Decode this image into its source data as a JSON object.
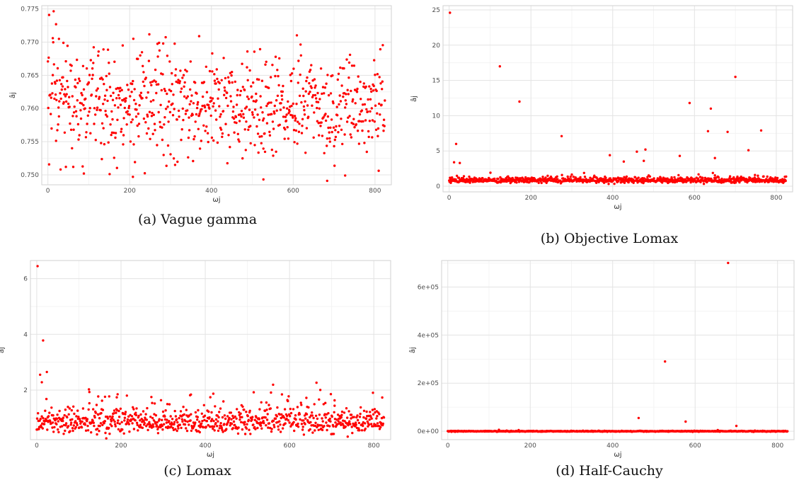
{
  "chart_data": [
    {
      "panel": "a",
      "type": "scatter",
      "caption": "(a) Vague gamma",
      "xlabel": "ωj",
      "ylabel": "âj",
      "xlim": [
        -15,
        840
      ],
      "ylim": [
        0.7485,
        0.7755
      ],
      "xticks": [
        "0",
        "200",
        "400",
        "600",
        "800"
      ],
      "yticks": [
        "0.750",
        "0.755",
        "0.760",
        "0.765",
        "0.770",
        "0.775"
      ],
      "point_color": "#ff0000",
      "grid": true,
      "n_points": 825,
      "bulk": {
        "center": 0.7605,
        "spread": 0.0042
      },
      "notable_points": [
        {
          "x": 3,
          "y": 0.7741
        },
        {
          "x": 20,
          "y": 0.7727
        },
        {
          "x": 12,
          "y": 0.7706
        },
        {
          "x": 27,
          "y": 0.7705
        },
        {
          "x": 38,
          "y": 0.7699
        },
        {
          "x": 370,
          "y": 0.7709
        },
        {
          "x": 488,
          "y": 0.7686
        },
        {
          "x": 183,
          "y": 0.7695
        },
        {
          "x": 136,
          "y": 0.7689
        },
        {
          "x": 402,
          "y": 0.7683
        },
        {
          "x": 88,
          "y": 0.7502
        },
        {
          "x": 208,
          "y": 0.7497
        },
        {
          "x": 527,
          "y": 0.7493
        },
        {
          "x": 683,
          "y": 0.7491
        },
        {
          "x": 727,
          "y": 0.7499
        },
        {
          "x": 44,
          "y": 0.7512
        }
      ]
    },
    {
      "panel": "b",
      "type": "scatter",
      "caption": "(b) Objective Lomax",
      "xlabel": "ωj",
      "ylabel": "âj",
      "xlim": [
        -15,
        840
      ],
      "ylim": [
        -0.8,
        25.6
      ],
      "xticks": [
        "0",
        "200",
        "400",
        "600",
        "800"
      ],
      "yticks": [
        "0",
        "5",
        "10",
        "15",
        "20",
        "25"
      ],
      "point_color": "#ff0000",
      "grid": true,
      "n_points": 825,
      "bulk": {
        "center": 0.8,
        "spread": 0.25
      },
      "notable_points": [
        {
          "x": 2,
          "y": 24.6
        },
        {
          "x": 124,
          "y": 17.0
        },
        {
          "x": 700,
          "y": 15.5
        },
        {
          "x": 172,
          "y": 12.0
        },
        {
          "x": 588,
          "y": 11.8
        },
        {
          "x": 640,
          "y": 11.0
        },
        {
          "x": 633,
          "y": 7.8
        },
        {
          "x": 681,
          "y": 7.7
        },
        {
          "x": 763,
          "y": 7.9
        },
        {
          "x": 275,
          "y": 7.1
        },
        {
          "x": 17,
          "y": 6.0
        },
        {
          "x": 732,
          "y": 5.1
        },
        {
          "x": 480,
          "y": 5.2
        },
        {
          "x": 459,
          "y": 4.9
        },
        {
          "x": 393,
          "y": 4.4
        },
        {
          "x": 564,
          "y": 4.3
        },
        {
          "x": 26,
          "y": 3.3
        },
        {
          "x": 12,
          "y": 3.4
        },
        {
          "x": 476,
          "y": 3.6
        },
        {
          "x": 427,
          "y": 3.5
        },
        {
          "x": 650,
          "y": 4.0
        }
      ]
    },
    {
      "panel": "c",
      "type": "scatter",
      "caption": "(c) Lomax",
      "xlabel": "ωj",
      "ylabel": "âj",
      "xlim": [
        -15,
        840
      ],
      "ylim": [
        0.22,
        6.65
      ],
      "xticks": [
        "0",
        "200",
        "400",
        "600",
        "800"
      ],
      "yticks": [
        "2",
        "4",
        "6"
      ],
      "point_color": "#ff0000",
      "grid": true,
      "n_points": 825,
      "bulk": {
        "center": 0.82,
        "spread": 0.3
      },
      "notable_points": [
        {
          "x": 2,
          "y": 6.45
        },
        {
          "x": 15,
          "y": 3.78
        },
        {
          "x": 24,
          "y": 2.65
        },
        {
          "x": 8,
          "y": 2.55
        },
        {
          "x": 12,
          "y": 2.28
        },
        {
          "x": 125,
          "y": 1.93
        },
        {
          "x": 192,
          "y": 1.85
        },
        {
          "x": 366,
          "y": 1.84
        },
        {
          "x": 272,
          "y": 1.75
        },
        {
          "x": 640,
          "y": 1.72
        },
        {
          "x": 707,
          "y": 1.63
        },
        {
          "x": 23,
          "y": 1.68
        },
        {
          "x": 146,
          "y": 1.77
        },
        {
          "x": 162,
          "y": 1.76
        },
        {
          "x": 533,
          "y": 1.56
        }
      ]
    },
    {
      "panel": "d",
      "type": "scatter",
      "caption": "(d) Half-Cauchy",
      "xlabel": "ωj",
      "ylabel": "âj",
      "xlim": [
        -15,
        840
      ],
      "ylim": [
        -35000,
        710000
      ],
      "xticks": [
        "0",
        "200",
        "400",
        "600",
        "800"
      ],
      "yticks": [
        "0e+00",
        "2e+05",
        "4e+05",
        "6e+05"
      ],
      "point_color": "#ff0000",
      "grid": true,
      "n_points": 825,
      "bulk": {
        "center": 0,
        "spread": 0
      },
      "notable_points": [
        {
          "x": 680,
          "y": 700000
        },
        {
          "x": 527,
          "y": 290000
        },
        {
          "x": 463,
          "y": 55000
        },
        {
          "x": 577,
          "y": 40000
        },
        {
          "x": 700,
          "y": 22000
        },
        {
          "x": 124,
          "y": 6000
        },
        {
          "x": 172,
          "y": 5000
        },
        {
          "x": 655,
          "y": 5000
        }
      ]
    }
  ]
}
